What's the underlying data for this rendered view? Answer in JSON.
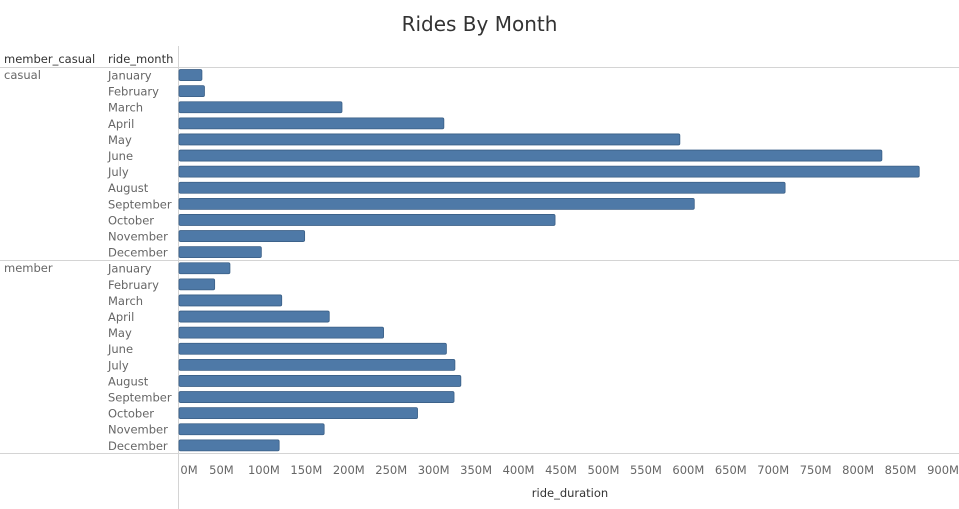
{
  "chart_data": {
    "type": "bar",
    "title": "Rides By Month",
    "xlabel": "ride_duration",
    "row_headers": [
      "member_casual",
      "ride_month"
    ],
    "xlim": [
      0,
      900000000
    ],
    "xticks": [
      "0M",
      "50M",
      "100M",
      "150M",
      "200M",
      "250M",
      "300M",
      "350M",
      "400M",
      "450M",
      "500M",
      "550M",
      "600M",
      "650M",
      "700M",
      "750M",
      "800M",
      "850M",
      "900M"
    ],
    "categories": [
      "January",
      "February",
      "March",
      "April",
      "May",
      "June",
      "July",
      "August",
      "September",
      "October",
      "November",
      "December"
    ],
    "groups": [
      {
        "name": "casual",
        "values": [
          27000000,
          30000000,
          192000000,
          312000000,
          590000000,
          828000000,
          872000000,
          714000000,
          607000000,
          443000000,
          148000000,
          97000000
        ]
      },
      {
        "name": "member",
        "values": [
          60000000,
          42000000,
          121000000,
          177000000,
          241000000,
          315000000,
          325000000,
          332000000,
          324000000,
          281000000,
          171000000,
          118000000
        ]
      }
    ],
    "bar_color": "#4e79a7",
    "grid": false
  }
}
